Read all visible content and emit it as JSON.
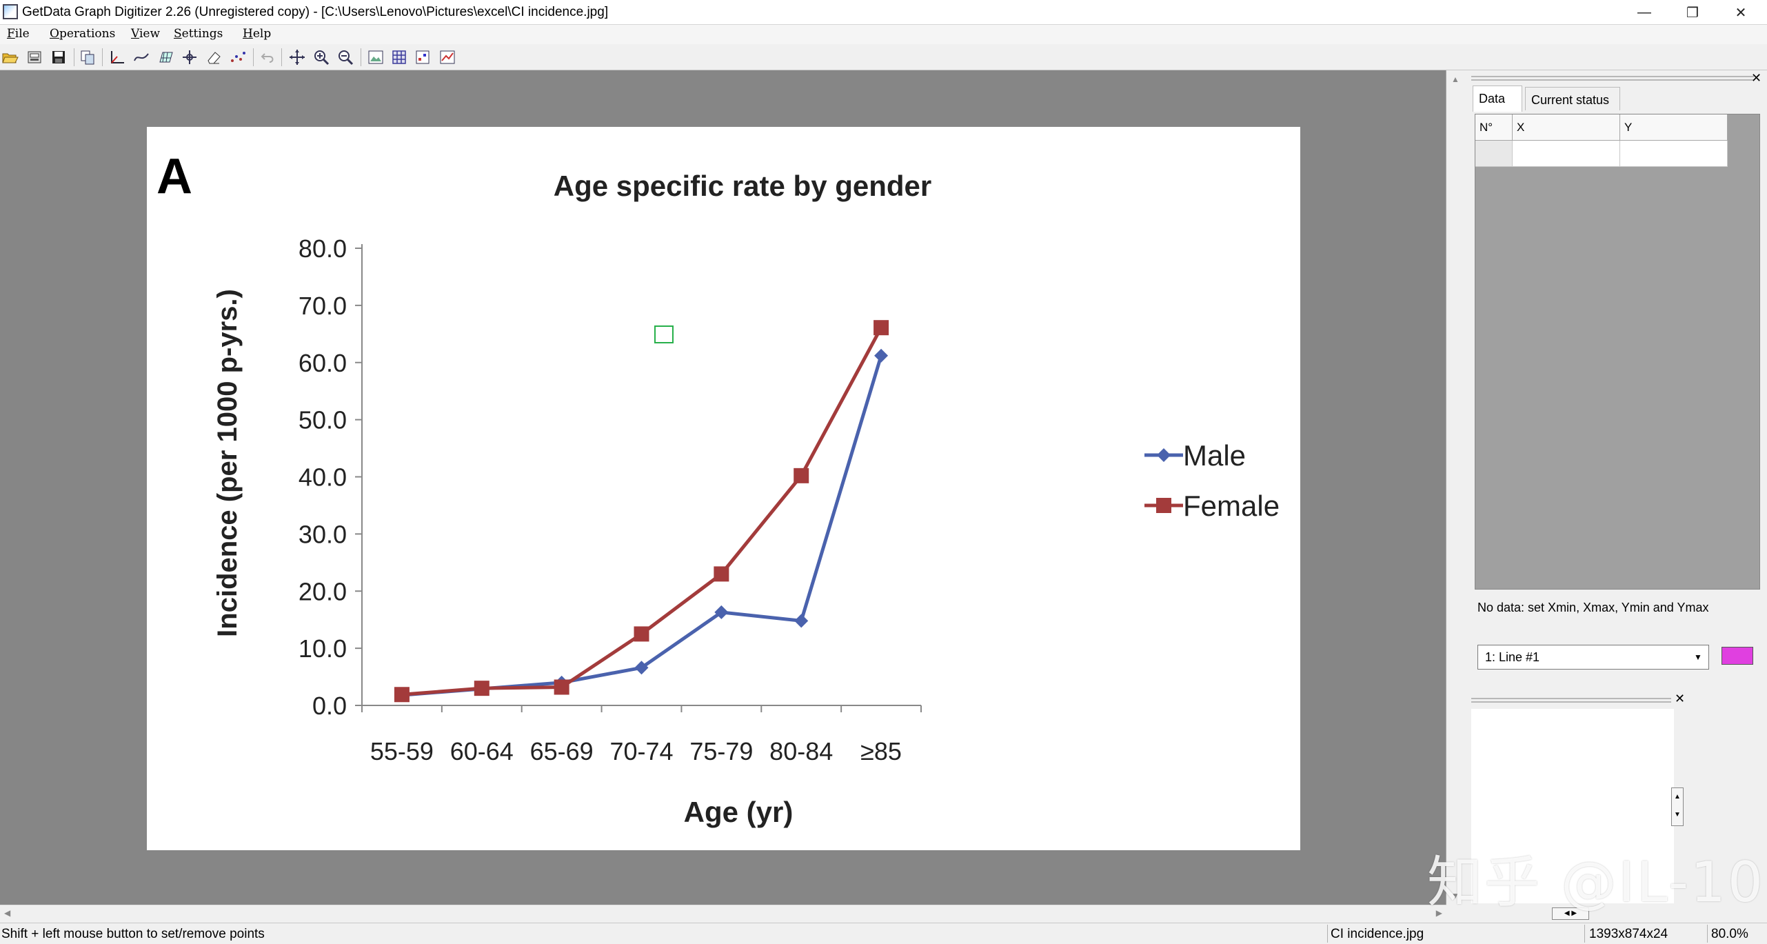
{
  "window": {
    "title": "GetData Graph Digitizer 2.26 (Unregistered copy) - [C:\\Users\\Lenovo\\Pictures\\excel\\CI incidence.jpg]",
    "minimize": "—",
    "maximize": "❐",
    "close": "✕"
  },
  "menu": [
    "File",
    "Operations",
    "View",
    "Settings",
    "Help"
  ],
  "toolbar_icons": [
    "open-icon",
    "scan-icon",
    "save-icon",
    "copy-icon",
    "axes-icon",
    "line-digitize-icon",
    "area-digitize-icon",
    "point-capture-icon",
    "eraser-icon",
    "auto-trace-icon",
    "undo-icon",
    "move-icon",
    "zoom-in-icon",
    "zoom-out-icon",
    "fit-image-icon",
    "grid-icon",
    "points-icon",
    "line-view-icon"
  ],
  "chart_data": {
    "type": "line",
    "panel_label": "A",
    "title": "Age specific rate by gender",
    "xlabel": "Age (yr)",
    "ylabel": "Incidence (per 1000 p-yrs.)",
    "categories": [
      "55-59",
      "60-64",
      "65-69",
      "70-74",
      "75-79",
      "80-84",
      "≥85"
    ],
    "ylim": [
      0,
      80
    ],
    "yticks": [
      "0.0",
      "10.0",
      "20.0",
      "30.0",
      "40.0",
      "50.0",
      "60.0",
      "70.0",
      "80.0"
    ],
    "legend_position": "right",
    "series": [
      {
        "name": "Male",
        "color": "#4a62ad",
        "marker": "diamond",
        "values": [
          1.8,
          2.9,
          4.0,
          6.6,
          16.3,
          14.8,
          61.2
        ]
      },
      {
        "name": "Female",
        "color": "#a33b3b",
        "marker": "square",
        "values": [
          1.9,
          3.0,
          3.2,
          12.5,
          23.0,
          40.2,
          66.1
        ]
      }
    ]
  },
  "side_panel": {
    "tabs": [
      "Data",
      "Current status"
    ],
    "grid_headers": [
      "N°",
      "X",
      "Y"
    ],
    "status_message": "No data: set Xmin, Xmax, Ymin and Ymax",
    "line_select": "1: Line #1",
    "line_color": "#e040e0"
  },
  "statusbar": {
    "hint": "Shift + left mouse button to set/remove points",
    "file": "CI incidence.jpg",
    "size": "1393x874x24",
    "zoom": "80.0%"
  },
  "watermark": "知乎 @IL-10"
}
